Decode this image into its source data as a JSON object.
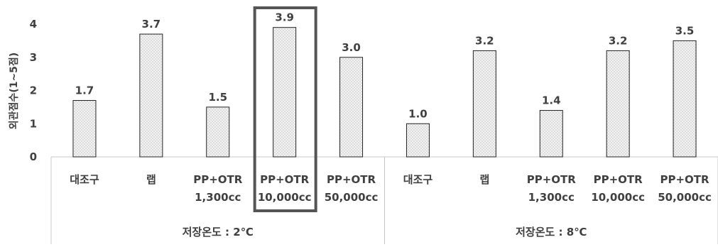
{
  "chart_data": {
    "type": "bar",
    "ylabel": "외관점수(1~5점)",
    "ylim": [
      0,
      4
    ],
    "yticks": [
      "0",
      "1",
      "2",
      "3",
      "4"
    ],
    "grid": false,
    "legend": "none",
    "groups": [
      {
        "label": "저장온도 : 2℃",
        "categories": [
          {
            "lines": [
              "대조구"
            ],
            "value": 1.7,
            "label": "1.7"
          },
          {
            "lines": [
              "랩"
            ],
            "value": 3.7,
            "label": "3.7"
          },
          {
            "lines": [
              "PP+OTR",
              "1,300cc"
            ],
            "value": 1.5,
            "label": "1.5"
          },
          {
            "lines": [
              "PP+OTR",
              "10,000cc"
            ],
            "value": 3.9,
            "label": "3.9",
            "highlighted": true
          },
          {
            "lines": [
              "PP+OTR",
              "50,000cc"
            ],
            "value": 3.0,
            "label": "3.0"
          }
        ]
      },
      {
        "label": "저장온도 : 8℃",
        "categories": [
          {
            "lines": [
              "대조구"
            ],
            "value": 1.0,
            "label": "1.0"
          },
          {
            "lines": [
              "랩"
            ],
            "value": 3.2,
            "label": "3.2"
          },
          {
            "lines": [
              "PP+OTR",
              "1,300cc"
            ],
            "value": 1.4,
            "label": "1.4"
          },
          {
            "lines": [
              "PP+OTR",
              "10,000cc"
            ],
            "value": 3.2,
            "label": "3.2"
          },
          {
            "lines": [
              "PP+OTR",
              "50,000cc"
            ],
            "value": 3.5,
            "label": "3.5"
          }
        ]
      }
    ],
    "colors": {
      "bar_fill": "#f2f2f2",
      "bar_dot": "#8a8a8a",
      "bar_stroke": "#222222",
      "text": "#404040",
      "axis": "#c8c8c8",
      "highlight": "#555555"
    }
  }
}
